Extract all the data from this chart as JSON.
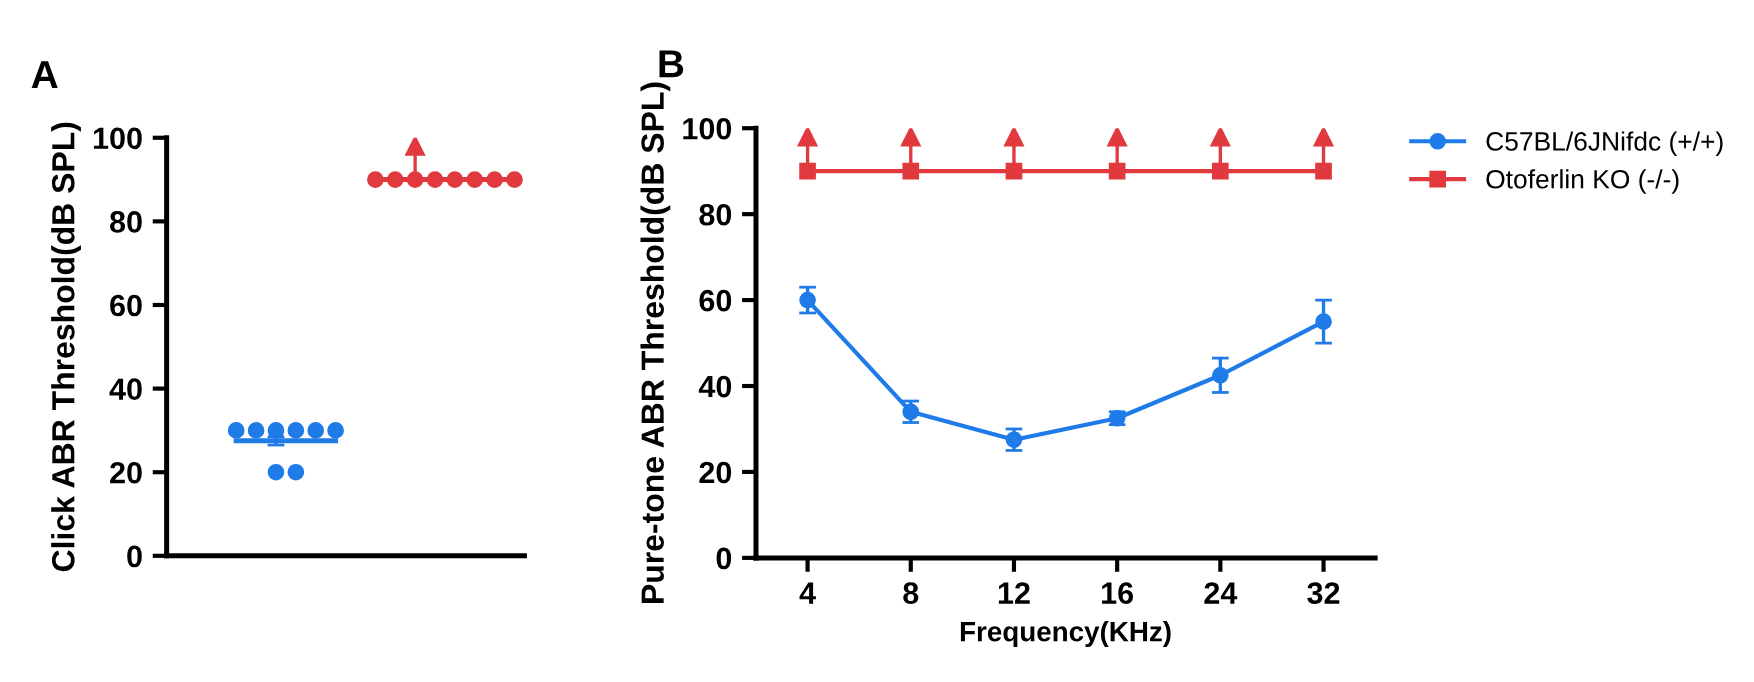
{
  "chart_data": [
    {
      "type": "scatter",
      "title": "A",
      "ylabel": "Click ABR Threshold(dB SPL)",
      "categories": [
        null,
        null,
        null,
        null,
        null,
        null,
        null,
        null,
        null,
        null,
        null,
        null,
        null,
        null,
        null,
        null,
        null,
        null
      ],
      "ylim": [
        0,
        100
      ],
      "yticks": [
        0,
        20,
        40,
        60,
        80,
        100
      ],
      "tick_labels": "y",
      "grid": false,
      "legend": false,
      "series": [
        {
          "type": "scatter",
          "color": "#1e7be8",
          "marker": "circle",
          "values": [
            null,
            null,
            null,
            30,
            30,
            30,
            30,
            30,
            30,
            null,
            null,
            null,
            null,
            null,
            null,
            null,
            null,
            null
          ]
        },
        {
          "type": "scatter",
          "color": "#1e7be8",
          "marker": "circle",
          "values": [
            null,
            null,
            null,
            null,
            null,
            20,
            20,
            null,
            null,
            null,
            null,
            null,
            null,
            null,
            null,
            null,
            null,
            null
          ]
        },
        {
          "type": "scatter",
          "color": "#e0393e",
          "marker": "circle",
          "values": [
            null,
            null,
            null,
            null,
            null,
            null,
            null,
            null,
            null,
            null,
            90,
            90,
            90,
            90,
            90,
            90,
            90,
            90
          ]
        },
        {
          "type": "line",
          "color": "#1e7be8",
          "marker": "none",
          "values": [
            null,
            null,
            null,
            27.5,
            27.5,
            27.5,
            27.5,
            27.5,
            27.5,
            null,
            null,
            null,
            null,
            null,
            null,
            null,
            null,
            null
          ],
          "errors": [
            null,
            null,
            null,
            null,
            null,
            1,
            null,
            null,
            null,
            null,
            null,
            null,
            null,
            null,
            null,
            null,
            null,
            null
          ]
        },
        {
          "type": "line",
          "color": "#e0393e",
          "marker": "none",
          "values": [
            null,
            null,
            null,
            null,
            null,
            null,
            null,
            null,
            null,
            null,
            90,
            90,
            90,
            90,
            90,
            90,
            90,
            90
          ],
          "errors": [
            null,
            null,
            null,
            null,
            null,
            null,
            null,
            null,
            null,
            null,
            null,
            null,
            [
              90,
              98
            ],
            null,
            null,
            null,
            null,
            null
          ]
        }
      ]
    },
    {
      "type": "line",
      "title": "B",
      "xlabel": "Frequency(KHz)",
      "ylabel": "Pure-tone ABR Threshold(dB SPL)",
      "categories": [
        "4",
        "8",
        "12",
        "16",
        "24",
        "32"
      ],
      "ylim": [
        0,
        100
      ],
      "yticks": [
        0,
        20,
        40,
        60,
        80,
        100
      ],
      "grid": false,
      "legend": "right",
      "series": [
        {
          "name": "C57BL/6JNifdc (+/+)",
          "color": "#1e7be8",
          "marker": "circle",
          "values": [
            60,
            34,
            27.5,
            32.5,
            42.5,
            55
          ],
          "errors": [
            3,
            2.5,
            2.5,
            1.5,
            4,
            5
          ]
        },
        {
          "name": "Otoferlin KO (-/-)",
          "color": "#e0393e",
          "marker": "square",
          "values": [
            90,
            90,
            90,
            90,
            90,
            90
          ],
          "errors": [
            [
              90,
              98
            ],
            [
              90,
              98
            ],
            [
              90,
              98
            ],
            [
              90,
              98
            ],
            [
              90,
              98
            ],
            [
              90,
              98
            ]
          ]
        }
      ]
    }
  ]
}
